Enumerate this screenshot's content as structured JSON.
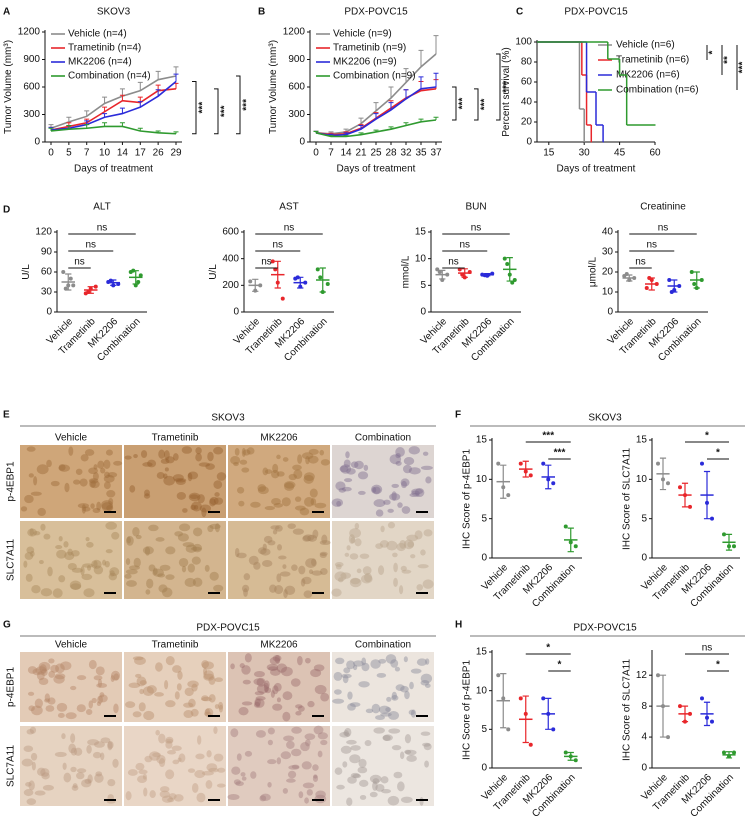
{
  "panel_labels": [
    "A",
    "B",
    "C",
    "D",
    "E",
    "F",
    "G",
    "H"
  ],
  "group_titles": [
    "SKOV3",
    "PDX-POVC15"
  ],
  "image_panels": [
    {
      "title": "SKOV3",
      "columns": [
        "Vehicle",
        "Trametinib",
        "MK2206",
        "Combination"
      ],
      "rows": [
        "p-4EBP1",
        "SLC7A11"
      ]
    },
    {
      "title": "PDX-POVC15",
      "columns": [
        "Vehicle",
        "Trametinib",
        "MK2206",
        "Combination"
      ],
      "rows": [
        "p-4EBP1",
        "SLC7A11"
      ]
    }
  ],
  "chart_data": [
    {
      "type": "line",
      "title": "SKOV3",
      "x_label": "Days of treatment",
      "y_label": "Tumor Volume (mm³)",
      "categories": [
        "0",
        "5",
        "7",
        "10",
        "14",
        "17",
        "26",
        "29"
      ],
      "ylim": [
        0,
        1200
      ],
      "yticks": [
        0,
        300,
        600,
        900,
        1200
      ],
      "series": [
        {
          "name": "Vehicle (n=4)",
          "color": "#8c8c8c",
          "values": [
            150,
            220,
            280,
            420,
            500,
            560,
            680,
            720
          ],
          "errors": [
            40,
            50,
            60,
            70,
            80,
            90,
            90,
            100
          ]
        },
        {
          "name": "Trametinib (n=4)",
          "color": "#e8262b",
          "values": [
            130,
            170,
            210,
            330,
            450,
            430,
            560,
            580
          ],
          "errors": [
            30,
            40,
            40,
            50,
            60,
            60,
            60,
            60
          ]
        },
        {
          "name": "MK2206 (n=4)",
          "color": "#2b2bd9",
          "values": [
            130,
            150,
            190,
            270,
            310,
            380,
            500,
            660
          ],
          "errors": [
            30,
            30,
            40,
            40,
            60,
            60,
            70,
            80
          ]
        },
        {
          "name": "Combination (n=4)",
          "color": "#2f9a2f",
          "values": [
            120,
            140,
            150,
            170,
            170,
            120,
            100,
            90
          ],
          "errors": [
            30,
            40,
            40,
            40,
            40,
            30,
            20,
            20
          ]
        }
      ],
      "brackets": [
        {
          "pair": [
            "MK2206 (n=4)",
            "Combination (n=4)"
          ],
          "label": "***"
        },
        {
          "pair": [
            "Trametinib (n=4)",
            "Combination (n=4)"
          ],
          "label": "***"
        },
        {
          "pair": [
            "Vehicle (n=4)",
            "Combination (n=4)"
          ],
          "label": "***"
        }
      ]
    },
    {
      "type": "line",
      "title": "PDX-POVC15",
      "x_label": "Days of treatment",
      "y_label": "Tumor Volume (mm³)",
      "categories": [
        "0",
        "7",
        "14",
        "21",
        "25",
        "28",
        "32",
        "35",
        "37"
      ],
      "ylim": [
        0,
        1200
      ],
      "yticks": [
        0,
        300,
        600,
        900,
        1200
      ],
      "series": [
        {
          "name": "Vehicle (n=9)",
          "color": "#8c8c8c",
          "values": [
            100,
            90,
            110,
            200,
            340,
            480,
            650,
            820,
            960
          ],
          "errors": [
            20,
            20,
            30,
            60,
            90,
            120,
            150,
            180,
            200
          ]
        },
        {
          "name": "Trametinib (n=9)",
          "color": "#e8262b",
          "values": [
            100,
            80,
            90,
            150,
            260,
            370,
            480,
            560,
            580
          ],
          "errors": [
            15,
            15,
            20,
            40,
            60,
            80,
            90,
            100,
            100
          ]
        },
        {
          "name": "MK2206 (n=9)",
          "color": "#2b2bd9",
          "values": [
            100,
            70,
            80,
            140,
            250,
            350,
            470,
            580,
            600
          ],
          "errors": [
            15,
            15,
            20,
            40,
            60,
            80,
            100,
            130,
            150
          ]
        },
        {
          "name": "Combination (n=9)",
          "color": "#2f9a2f",
          "values": [
            100,
            60,
            60,
            80,
            110,
            140,
            180,
            220,
            240
          ],
          "errors": [
            15,
            10,
            10,
            20,
            20,
            25,
            30,
            30,
            30
          ]
        }
      ],
      "brackets": [
        {
          "pair": [
            "MK2206 (n=9)",
            "Combination (n=9)"
          ],
          "label": "***"
        },
        {
          "pair": [
            "Trametinib (n=9)",
            "Combination (n=9)"
          ],
          "label": "***"
        },
        {
          "pair": [
            "Vehicle (n=9)",
            "Combination (n=9)"
          ],
          "label": "***"
        }
      ]
    },
    {
      "type": "step",
      "title": "PDX-POVC15",
      "x_label": "Days of treatment",
      "y_label": "Percent survival (%)",
      "xlim": [
        10,
        60
      ],
      "xticks": [
        15,
        30,
        45,
        60
      ],
      "ylim": [
        0,
        100
      ],
      "yticks": [
        0,
        20,
        40,
        60,
        80,
        100
      ],
      "series": [
        {
          "name": "Vehicle (n=6)",
          "color": "#8c8c8c",
          "x": [
            10,
            28,
            30
          ],
          "values": [
            100,
            33,
            0
          ]
        },
        {
          "name": "Trametinib (n=6)",
          "color": "#e8262b",
          "x": [
            10,
            29,
            31,
            33
          ],
          "values": [
            100,
            67,
            17,
            0
          ]
        },
        {
          "name": "MK2206 (n=6)",
          "color": "#2b2bd9",
          "x": [
            10,
            31,
            35,
            38
          ],
          "values": [
            100,
            50,
            17,
            0
          ]
        },
        {
          "name": "Combination (n=6)",
          "color": "#2f9a2f",
          "x": [
            10,
            40,
            45,
            48,
            60
          ],
          "values": [
            100,
            83,
            67,
            17,
            17
          ]
        }
      ],
      "brackets": [
        {
          "pair": [
            "Vehicle (n=6)",
            "Trametinib (n=6)"
          ],
          "label": "*"
        },
        {
          "pair": [
            "Vehicle (n=6)",
            "MK2206 (n=6)"
          ],
          "label": "**"
        },
        {
          "pair": [
            "Vehicle (n=6)",
            "Combination (n=6)"
          ],
          "label": "***"
        }
      ]
    },
    {
      "type": "dot",
      "title": "ALT",
      "y_label": "U/L",
      "categories": [
        "Vehicle",
        "Trametinib",
        "MK2206",
        "Combination"
      ],
      "colors": [
        "#8c8c8c",
        "#e8262b",
        "#2b2bd9",
        "#2f9a2f"
      ],
      "ylim": [
        0,
        120
      ],
      "yticks": [
        0,
        30,
        60,
        90,
        120
      ],
      "groups": [
        {
          "points": [
            60,
            40,
            40,
            35,
            50
          ],
          "mean": 45,
          "sd": 12
        },
        {
          "points": [
            28,
            35,
            38,
            30
          ],
          "mean": 33,
          "sd": 5
        },
        {
          "points": [
            45,
            40,
            42,
            47
          ],
          "mean": 44,
          "sd": 4
        },
        {
          "points": [
            60,
            40,
            55,
            62,
            45
          ],
          "mean": 52,
          "sd": 10
        }
      ],
      "brackets": [
        {
          "pair": [
            "Vehicle",
            "Trametinib"
          ],
          "label": "ns"
        },
        {
          "pair": [
            "Vehicle",
            "MK2206"
          ],
          "label": "ns"
        },
        {
          "pair": [
            "Vehicle",
            "Combination"
          ],
          "label": "ns"
        }
      ]
    },
    {
      "type": "dot",
      "title": "AST",
      "y_label": "U/L",
      "categories": [
        "Vehicle",
        "Trametinib",
        "MK2206",
        "Combination"
      ],
      "colors": [
        "#8c8c8c",
        "#e8262b",
        "#2b2bd9",
        "#2f9a2f"
      ],
      "ylim": [
        0,
        600
      ],
      "yticks": [
        0,
        200,
        400,
        600
      ],
      "groups": [
        {
          "points": [
            230,
            160,
            200
          ],
          "mean": 200,
          "sd": 45
        },
        {
          "points": [
            380,
            220,
            100,
            320
          ],
          "mean": 280,
          "sd": 100
        },
        {
          "points": [
            250,
            190,
            220,
            260
          ],
          "mean": 220,
          "sd": 40
        },
        {
          "points": [
            320,
            150,
            210,
            260
          ],
          "mean": 240,
          "sd": 90
        }
      ],
      "brackets": [
        {
          "pair": [
            "Vehicle",
            "Trametinib"
          ],
          "label": "ns"
        },
        {
          "pair": [
            "Vehicle",
            "MK2206"
          ],
          "label": "ns"
        },
        {
          "pair": [
            "Vehicle",
            "Combination"
          ],
          "label": "ns"
        }
      ]
    },
    {
      "type": "dot",
      "title": "BUN",
      "y_label": "mmol/L",
      "categories": [
        "Vehicle",
        "Trametinib",
        "MK2206",
        "Combination"
      ],
      "colors": [
        "#8c8c8c",
        "#e8262b",
        "#2b2bd9",
        "#2f9a2f"
      ],
      "ylim": [
        0,
        15
      ],
      "yticks": [
        0,
        5,
        10,
        15
      ],
      "groups": [
        {
          "points": [
            8,
            6,
            7,
            7.5
          ],
          "mean": 7,
          "sd": 0.8
        },
        {
          "points": [
            8,
            6.5,
            7.5,
            7
          ],
          "mean": 7.3,
          "sd": 0.8
        },
        {
          "points": [
            7,
            6.8,
            7.2,
            6.9
          ],
          "mean": 7,
          "sd": 0.2
        },
        {
          "points": [
            10,
            7,
            6,
            9,
            5.5
          ],
          "mean": 8,
          "sd": 2.2
        }
      ],
      "brackets": [
        {
          "pair": [
            "Vehicle",
            "Trametinib"
          ],
          "label": "ns"
        },
        {
          "pair": [
            "Vehicle",
            "MK2206"
          ],
          "label": "ns"
        },
        {
          "pair": [
            "Vehicle",
            "Combination"
          ],
          "label": "ns"
        }
      ]
    },
    {
      "type": "dot",
      "title": "Creatinine",
      "y_label": "μmol/L",
      "categories": [
        "Vehicle",
        "Trametinib",
        "MK2206",
        "Combination"
      ],
      "colors": [
        "#8c8c8c",
        "#e8262b",
        "#2b2bd9",
        "#2f9a2f"
      ],
      "ylim": [
        0,
        40
      ],
      "yticks": [
        0,
        10,
        20,
        30,
        40
      ],
      "groups": [
        {
          "points": [
            18,
            16,
            17,
            19
          ],
          "mean": 17,
          "sd": 1.5
        },
        {
          "points": [
            12,
            16,
            14,
            17
          ],
          "mean": 14,
          "sd": 3
        },
        {
          "points": [
            16,
            11,
            13,
            10
          ],
          "mean": 13,
          "sd": 3
        },
        {
          "points": [
            20,
            12,
            16,
            14
          ],
          "mean": 16,
          "sd": 4
        }
      ],
      "brackets": [
        {
          "pair": [
            "Vehicle",
            "Trametinib"
          ],
          "label": "ns"
        },
        {
          "pair": [
            "Vehicle",
            "MK2206"
          ],
          "label": "ns"
        },
        {
          "pair": [
            "Vehicle",
            "Combination"
          ],
          "label": "ns"
        }
      ]
    },
    {
      "type": "dot",
      "y_label": "IHC Score of p-4EBP1",
      "categories": [
        "Vehicle",
        "Trametinib",
        "MK2206",
        "Combination"
      ],
      "colors": [
        "#8c8c8c",
        "#e8262b",
        "#2b2bd9",
        "#2f9a2f"
      ],
      "ylim": [
        0,
        15
      ],
      "yticks": [
        0,
        5,
        10,
        15
      ],
      "groups": [
        {
          "points": [
            12,
            9,
            8
          ],
          "mean": 9.7,
          "sd": 2.1
        },
        {
          "points": [
            12,
            11,
            10.5
          ],
          "mean": 11.3,
          "sd": 1
        },
        {
          "points": [
            12,
            10,
            9.5
          ],
          "mean": 10.3,
          "sd": 1.5
        },
        {
          "points": [
            4,
            2,
            1.5
          ],
          "mean": 2.3,
          "sd": 1.5
        }
      ],
      "brackets": [
        {
          "pair": [
            "MK2206",
            "Combination"
          ],
          "label": "***"
        },
        {
          "pair": [
            "Trametinib",
            "Combination"
          ],
          "label": "***"
        }
      ]
    },
    {
      "type": "dot",
      "y_label": "IHC Score of SLC7A11",
      "categories": [
        "Vehicle",
        "Trametinib",
        "MK2206",
        "Combination"
      ],
      "colors": [
        "#8c8c8c",
        "#e8262b",
        "#2b2bd9",
        "#2f9a2f"
      ],
      "ylim": [
        0,
        15
      ],
      "yticks": [
        0,
        5,
        10,
        15
      ],
      "groups": [
        {
          "points": [
            12,
            10,
            9.5
          ],
          "mean": 10.7,
          "sd": 2
        },
        {
          "points": [
            9,
            8,
            6.5
          ],
          "mean": 8,
          "sd": 1.5
        },
        {
          "points": [
            12,
            7,
            5
          ],
          "mean": 8,
          "sd": 3
        },
        {
          "points": [
            3,
            1.5,
            1.5
          ],
          "mean": 2,
          "sd": 1
        }
      ],
      "brackets": [
        {
          "pair": [
            "MK2206",
            "Combination"
          ],
          "label": "*"
        },
        {
          "pair": [
            "Trametinib",
            "Combination"
          ],
          "label": "*"
        }
      ]
    },
    {
      "type": "dot",
      "y_label": "IHC Score of p-4EBP1",
      "categories": [
        "Vehicle",
        "Trametinib",
        "MK2206",
        "Combination"
      ],
      "colors": [
        "#8c8c8c",
        "#e8262b",
        "#2b2bd9",
        "#2f9a2f"
      ],
      "ylim": [
        0,
        15
      ],
      "yticks": [
        0,
        5,
        10,
        15
      ],
      "groups": [
        {
          "points": [
            12,
            9,
            5
          ],
          "mean": 8.7,
          "sd": 3.5
        },
        {
          "points": [
            9,
            7,
            3
          ],
          "mean": 6.3,
          "sd": 3
        },
        {
          "points": [
            9,
            7,
            5
          ],
          "mean": 7,
          "sd": 2
        },
        {
          "points": [
            2,
            1.5,
            1
          ],
          "mean": 1.5,
          "sd": 0.5
        }
      ],
      "brackets": [
        {
          "pair": [
            "MK2206",
            "Combination"
          ],
          "label": "*"
        },
        {
          "pair": [
            "Trametinib",
            "Combination"
          ],
          "label": "*"
        }
      ]
    },
    {
      "type": "dot",
      "y_label": "IHC Score of SLC7A11",
      "categories": [
        "Vehicle",
        "Trametinib",
        "MK2206",
        "Combination"
      ],
      "colors": [
        "#8c8c8c",
        "#e8262b",
        "#2b2bd9",
        "#2f9a2f"
      ],
      "ylim": [
        0,
        15
      ],
      "yticks": [
        0,
        4,
        8,
        12
      ],
      "groups": [
        {
          "points": [
            12,
            8,
            4
          ],
          "mean": 8,
          "sd": 4
        },
        {
          "points": [
            8,
            6,
            7
          ],
          "mean": 7,
          "sd": 1
        },
        {
          "points": [
            9,
            6.5,
            6
          ],
          "mean": 7,
          "sd": 1.5
        },
        {
          "points": [
            2,
            1.5,
            2
          ],
          "mean": 1.7,
          "sd": 0.4
        }
      ],
      "brackets": [
        {
          "pair": [
            "MK2206",
            "Combination"
          ],
          "label": "*"
        },
        {
          "pair": [
            "Trametinib",
            "Combination"
          ],
          "label": "ns"
        }
      ]
    }
  ]
}
